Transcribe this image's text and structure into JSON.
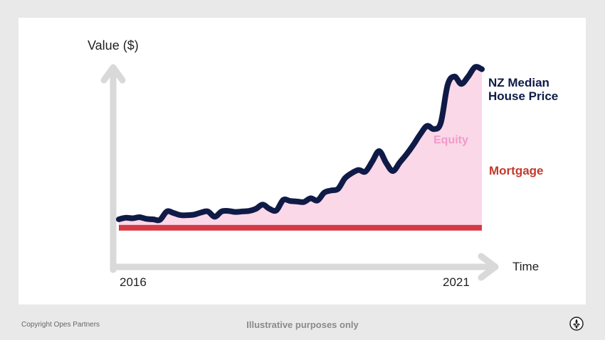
{
  "chart_data": {
    "type": "area",
    "ylabel": "Value ($)",
    "xlabel": "Time",
    "x_tick_labels": [
      "2016",
      "2021"
    ],
    "series": [
      {
        "name": "NZ Median House Price",
        "color": "#0f1b46",
        "values": [
          9.6,
          9.9,
          9.8,
          10.0,
          9.7,
          9.6,
          9.5,
          11.1,
          10.8,
          10.4,
          10.4,
          10.5,
          10.9,
          11.1,
          10.1,
          11.1,
          11.2,
          11.0,
          11.1,
          11.2,
          11.6,
          12.4,
          11.6,
          11.3,
          13.3,
          13.1,
          13.0,
          12.9,
          13.6,
          13.2,
          14.7,
          15.1,
          15.4,
          17.4,
          18.4,
          19.0,
          18.7,
          20.6,
          22.6,
          20.4,
          18.8,
          20.4,
          22.0,
          23.8,
          25.8,
          27.4,
          26.8,
          28.0,
          35.2,
          36.8,
          35.4,
          36.8,
          38.6,
          38.2
        ]
      },
      {
        "name": "Mortgage",
        "color": "#d63a45",
        "values": [
          8.0,
          8.0
        ]
      }
    ],
    "area_label": "Equity",
    "area_color": "#fad8e8",
    "ylim": [
      0,
      48
    ]
  },
  "footer": {
    "copyright": "Copyright Opes Partners",
    "note": "Illustrative purposes only"
  },
  "logo_icon": "fleur-de-lis-icon"
}
